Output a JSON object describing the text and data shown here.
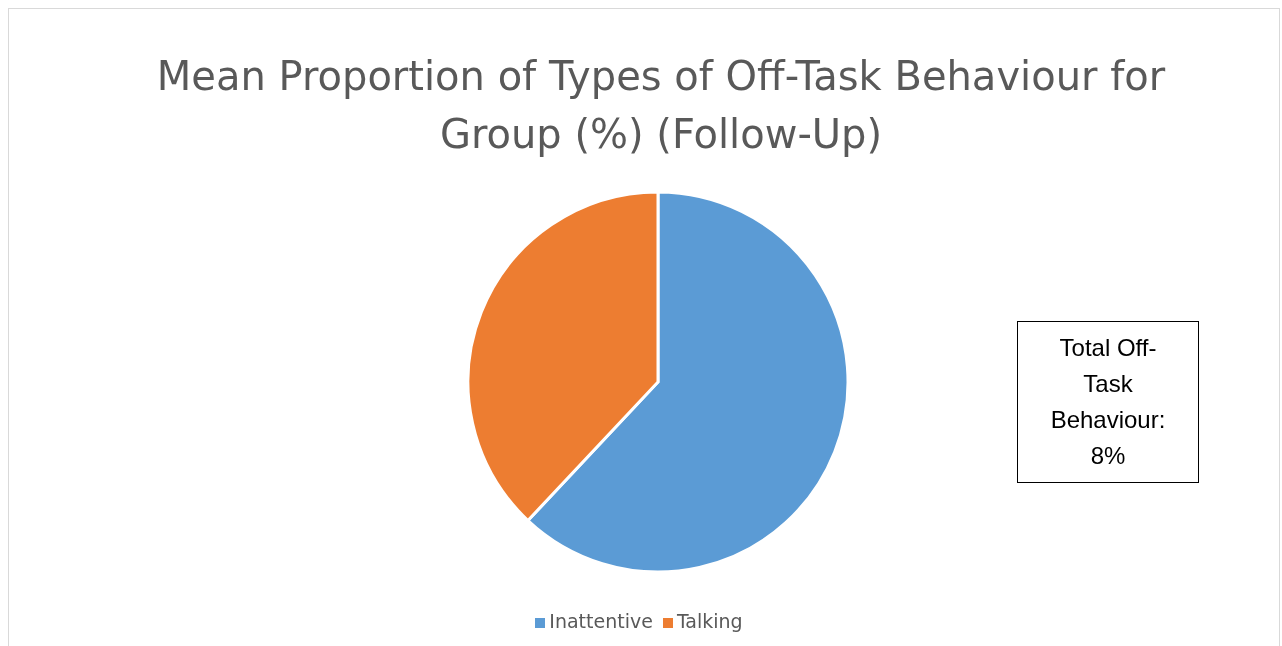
{
  "chart_data": {
    "type": "pie",
    "title": "Mean Proportion of Types of Off-Task Behaviour for Group (%) (Follow-Up)",
    "categories": [
      "Inattentive",
      "Talking"
    ],
    "values": [
      62,
      38
    ],
    "colors": [
      "#5b9bd5",
      "#ed7d31"
    ],
    "legend": "bottom",
    "annotations": [
      "Total Off-Task Behaviour: 8%"
    ]
  }
}
